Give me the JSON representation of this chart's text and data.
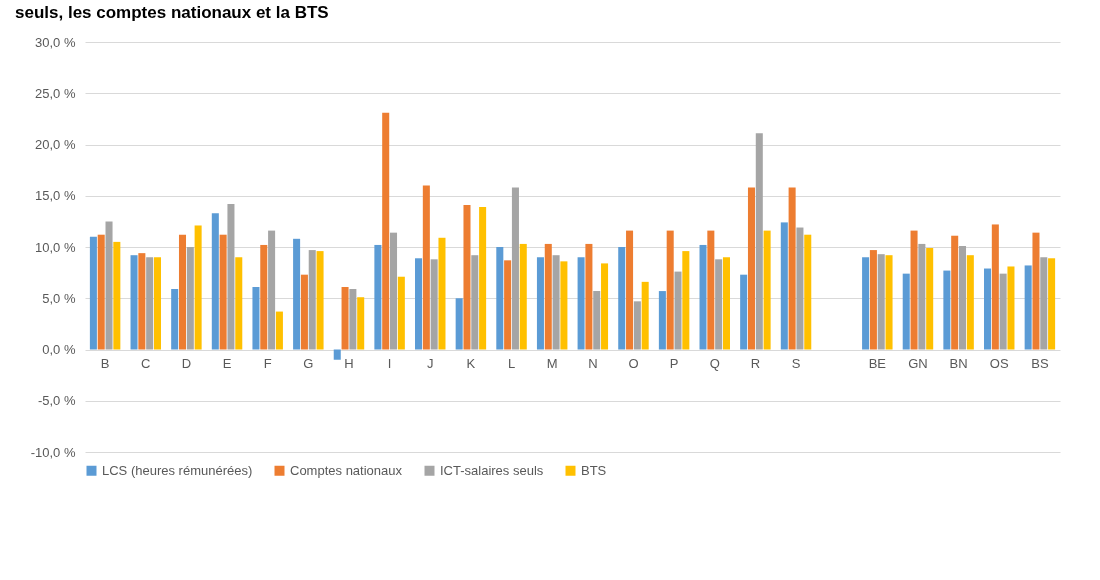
{
  "chart_data": {
    "type": "bar",
    "title": "seuls, les comptes nationaux et la BTS",
    "categories": [
      "B",
      "C",
      "D",
      "E",
      "F",
      "G",
      "H",
      "I",
      "J",
      "K",
      "L",
      "M",
      "N",
      "O",
      "P",
      "Q",
      "R",
      "S",
      null,
      "BE",
      "GN",
      "BN",
      "OS",
      "BS"
    ],
    "series": [
      {
        "name": "LCS (heures rémunérées)",
        "color": "#5b9bd5",
        "values": [
          11.0,
          9.2,
          5.9,
          13.3,
          6.1,
          10.8,
          -1.0,
          10.2,
          8.9,
          5.0,
          10.0,
          9.0,
          9.0,
          10.0,
          5.7,
          10.2,
          7.3,
          12.4,
          null,
          9.0,
          7.4,
          7.7,
          7.9,
          8.2
        ]
      },
      {
        "name": "Comptes nationaux",
        "color": "#ed7d31",
        "values": [
          11.2,
          9.4,
          11.2,
          11.2,
          10.2,
          7.3,
          6.1,
          23.1,
          16.0,
          14.1,
          8.7,
          10.3,
          10.3,
          11.6,
          11.6,
          11.6,
          15.8,
          15.8,
          null,
          9.7,
          11.6,
          11.1,
          12.2,
          11.4
        ]
      },
      {
        "name": "ICT-salaires seuls",
        "color": "#a5a5a5",
        "values": [
          12.5,
          9.0,
          10.0,
          14.2,
          11.6,
          9.7,
          5.9,
          11.4,
          8.8,
          9.2,
          15.8,
          9.2,
          5.7,
          4.7,
          7.6,
          8.8,
          21.1,
          11.9,
          null,
          9.3,
          10.3,
          10.1,
          7.4,
          9.0
        ]
      },
      {
        "name": "BTS",
        "color": "#ffc000",
        "values": [
          10.5,
          9.0,
          12.1,
          9.0,
          3.7,
          9.6,
          5.1,
          7.1,
          10.9,
          13.9,
          10.3,
          8.6,
          8.4,
          6.6,
          9.6,
          9.0,
          11.6,
          11.2,
          null,
          9.2,
          9.9,
          9.2,
          8.1,
          8.9
        ]
      }
    ],
    "ylim": [
      -10,
      30
    ],
    "yticks": [
      {
        "value": -10,
        "label": "-10,0 %"
      },
      {
        "value": -5,
        "label": "-5,0 %"
      },
      {
        "value": 0,
        "label": "0,0 %"
      },
      {
        "value": 5,
        "label": "5,0 %"
      },
      {
        "value": 10,
        "label": "10,0 %"
      },
      {
        "value": 15,
        "label": "15,0 %"
      },
      {
        "value": 20,
        "label": "20,0 %"
      },
      {
        "value": 25,
        "label": "25,0 %"
      },
      {
        "value": 30,
        "label": "30,0 %"
      }
    ],
    "grid": "y",
    "legend": "bottom"
  }
}
